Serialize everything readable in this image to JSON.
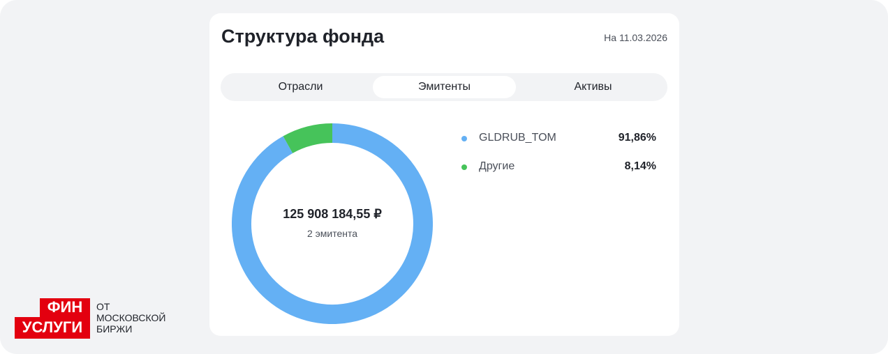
{
  "header": {
    "title": "Структура фонда",
    "date": "На 11.03.2026"
  },
  "tabs": [
    {
      "label": "Отрасли",
      "active": false
    },
    {
      "label": "Эмитенты",
      "active": true
    },
    {
      "label": "Активы",
      "active": false
    }
  ],
  "chart_data": {
    "type": "pie",
    "donut": true,
    "center_value": "125 908 184,55 ₽",
    "center_caption": "2 эмитента",
    "slices": [
      {
        "name": "GLDRUB_TOM",
        "value": 91.86,
        "label": "91,86%",
        "color": "#64b0f4"
      },
      {
        "name": "Другие",
        "value": 8.14,
        "label": "8,14%",
        "color": "#46c35a"
      }
    ]
  },
  "logo": {
    "line1": "ФИН",
    "line2": "УСЛУГИ",
    "sub1": "ОТ",
    "sub2": "МОСКОВСКОЙ",
    "sub3": "БИРЖИ",
    "color": "#e3000f"
  }
}
